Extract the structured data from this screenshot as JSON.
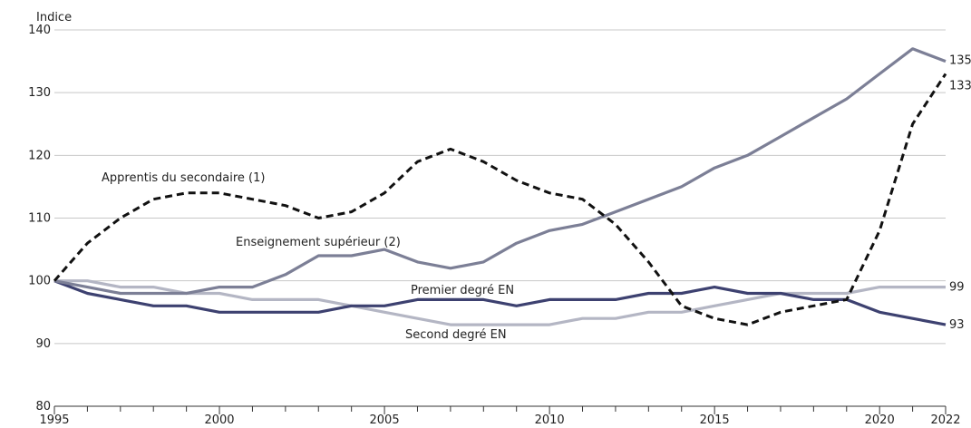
{
  "chart_data": {
    "type": "line",
    "ylabel": "Indice",
    "ylim": [
      80,
      140
    ],
    "yticks": [
      80,
      90,
      100,
      110,
      120,
      130,
      140
    ],
    "xlim": [
      1995,
      2022
    ],
    "xticks": [
      1995,
      2000,
      2005,
      2010,
      2015,
      2020,
      2022
    ],
    "grid": "horizontal",
    "x": [
      1995,
      1996,
      1997,
      1998,
      1999,
      2000,
      2001,
      2002,
      2003,
      2004,
      2005,
      2006,
      2007,
      2008,
      2009,
      2010,
      2011,
      2012,
      2013,
      2014,
      2015,
      2016,
      2017,
      2018,
      2019,
      2020,
      2021,
      2022
    ],
    "series": [
      {
        "name": "Apprentis du secondaire (1)",
        "color": "#111111",
        "dash": "dashed",
        "values": [
          100,
          106,
          110,
          113,
          114,
          114,
          113,
          112,
          110,
          111,
          114,
          119,
          121,
          119,
          116,
          114,
          113,
          109,
          103,
          96,
          94,
          93,
          95,
          96,
          97,
          108,
          125,
          133
        ],
        "end_label": "133"
      },
      {
        "name": "Enseignement supérieur (2)",
        "color": "#7c7f96",
        "dash": "solid",
        "values": [
          100,
          99,
          98,
          98,
          98,
          99,
          99,
          101,
          104,
          104,
          105,
          103,
          102,
          103,
          106,
          108,
          109,
          111,
          113,
          115,
          118,
          120,
          123,
          126,
          129,
          133,
          137,
          135
        ],
        "end_label": "135"
      },
      {
        "name": "Premier degré EN",
        "color": "#3d4170",
        "dash": "solid",
        "values": [
          100,
          98,
          97,
          96,
          96,
          95,
          95,
          95,
          95,
          96,
          96,
          97,
          97,
          97,
          96,
          97,
          97,
          97,
          98,
          98,
          99,
          98,
          98,
          97,
          97,
          95,
          94,
          93
        ],
        "end_label": "93"
      },
      {
        "name": "Second degré EN",
        "color": "#b4b6c4",
        "dash": "solid",
        "values": [
          100,
          100,
          99,
          99,
          98,
          98,
          97,
          97,
          97,
          96,
          95,
          94,
          93,
          93,
          93,
          93,
          94,
          94,
          95,
          95,
          96,
          97,
          98,
          98,
          98,
          99,
          99,
          99
        ],
        "end_label": "99"
      }
    ]
  }
}
